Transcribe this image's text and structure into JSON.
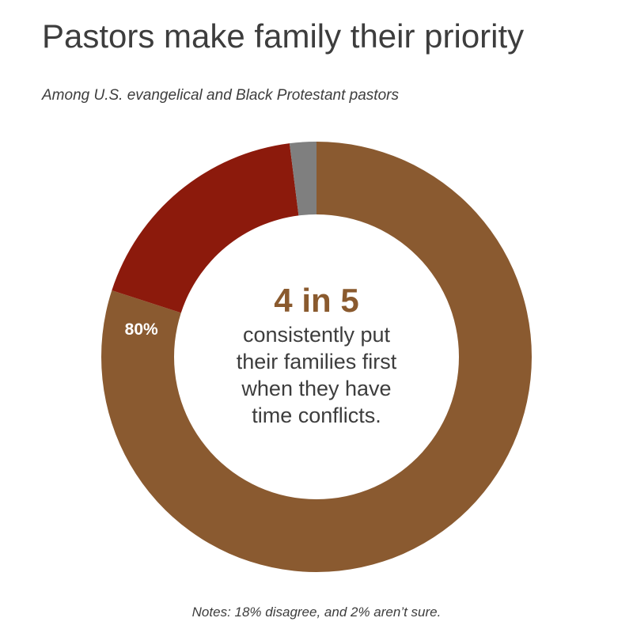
{
  "title": "Pastors make family their priority",
  "subtitle": "Among U.S. evangelical and Black Protestant pastors",
  "center": {
    "headline": "4 in 5",
    "lines": [
      "consistently put",
      "their families first",
      "when they have",
      "time conflicts."
    ]
  },
  "note": "Notes: 18% disagree, and 2% aren’t sure.",
  "chart_data": {
    "type": "pie",
    "donut": true,
    "slices": [
      {
        "name": "agree",
        "value": 80,
        "label": "80%",
        "color": "#8a5a30"
      },
      {
        "name": "disagree",
        "value": 18,
        "label": "",
        "color": "#8c1a0c"
      },
      {
        "name": "not sure",
        "value": 2,
        "label": "",
        "color": "#7f7f7f"
      }
    ]
  }
}
